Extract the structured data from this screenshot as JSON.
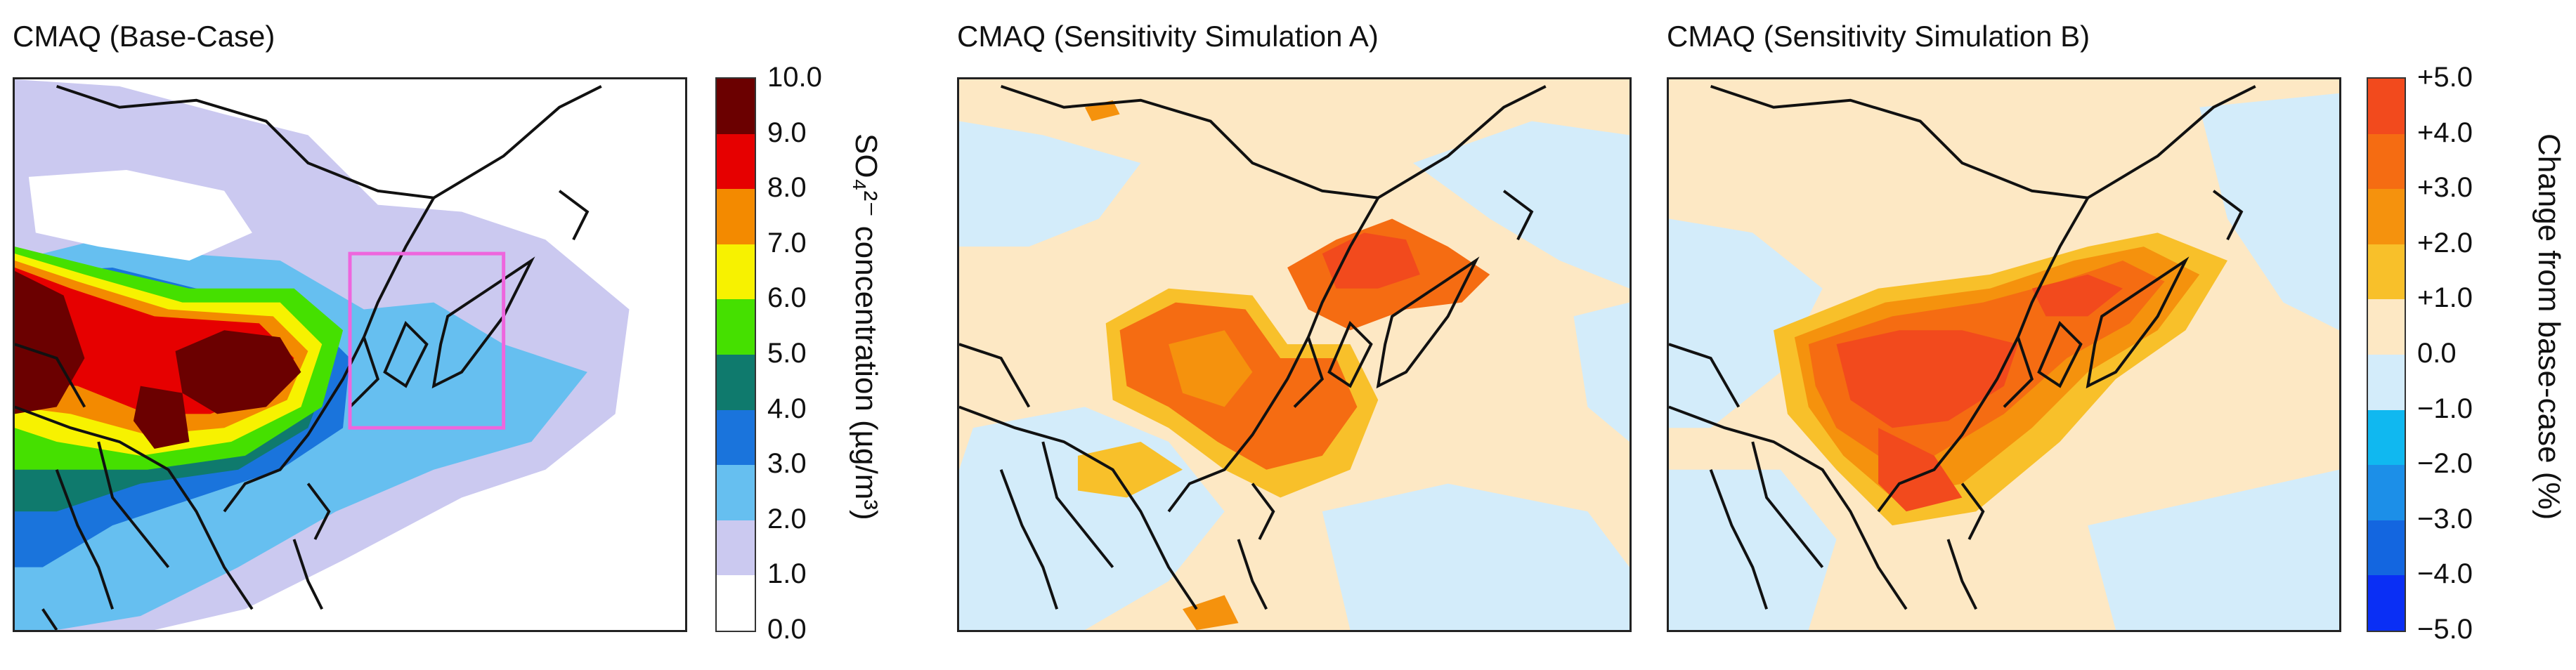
{
  "panels": [
    {
      "id": "base",
      "title": "CMAQ (Base-Case)"
    },
    {
      "id": "simA",
      "title": "CMAQ (Sensitivity Simulation A)"
    },
    {
      "id": "simB",
      "title": "CMAQ (Sensitivity Simulation B)"
    }
  ],
  "colorbar_concentration": {
    "label": "SO₄²⁻ concentration (µg/m³)",
    "ticks": [
      "10.0",
      "9.0",
      "8.0",
      "7.0",
      "6.0",
      "5.0",
      "4.0",
      "3.0",
      "2.0",
      "1.0",
      "0.0"
    ],
    "colors": [
      "#6b0000",
      "#e60000",
      "#f38a00",
      "#f7f200",
      "#45e000",
      "#0f7a6d",
      "#1a74dc",
      "#66bff0",
      "#cbc9f0",
      "#ffffff"
    ]
  },
  "colorbar_change": {
    "label": "Change from base-case (%)",
    "ticks": [
      "+5.0",
      "+4.0",
      "+3.0",
      "+2.0",
      "+1.0",
      "0.0",
      "−1.0",
      "−2.0",
      "−3.0",
      "−4.0",
      "−5.0"
    ],
    "colors": [
      "#f24a1d",
      "#f56c12",
      "#f5920d",
      "#f8c02a",
      "#fde8c4",
      "#d3ecfa",
      "#10b8f0",
      "#1c8fe8",
      "#1366e0",
      "#0a2ff5"
    ]
  },
  "chart_data": {
    "type": "heatmap",
    "description_values": {
      "panels": [
        "CMAQ (Base-Case)",
        "CMAQ (Sensitivity Simulation A)",
        "CMAQ (Sensitivity Simulation B)"
      ],
      "concentration_scale": {
        "min": 0.0,
        "max": 10.0,
        "step": 1.0,
        "units": "µg/m³"
      },
      "change_scale": {
        "min": -5.0,
        "max": 5.0,
        "step": 1.0,
        "units": "%"
      }
    },
    "colors": {
      "map_outline": "#111111",
      "highlight_box": "#ee66dd"
    }
  }
}
